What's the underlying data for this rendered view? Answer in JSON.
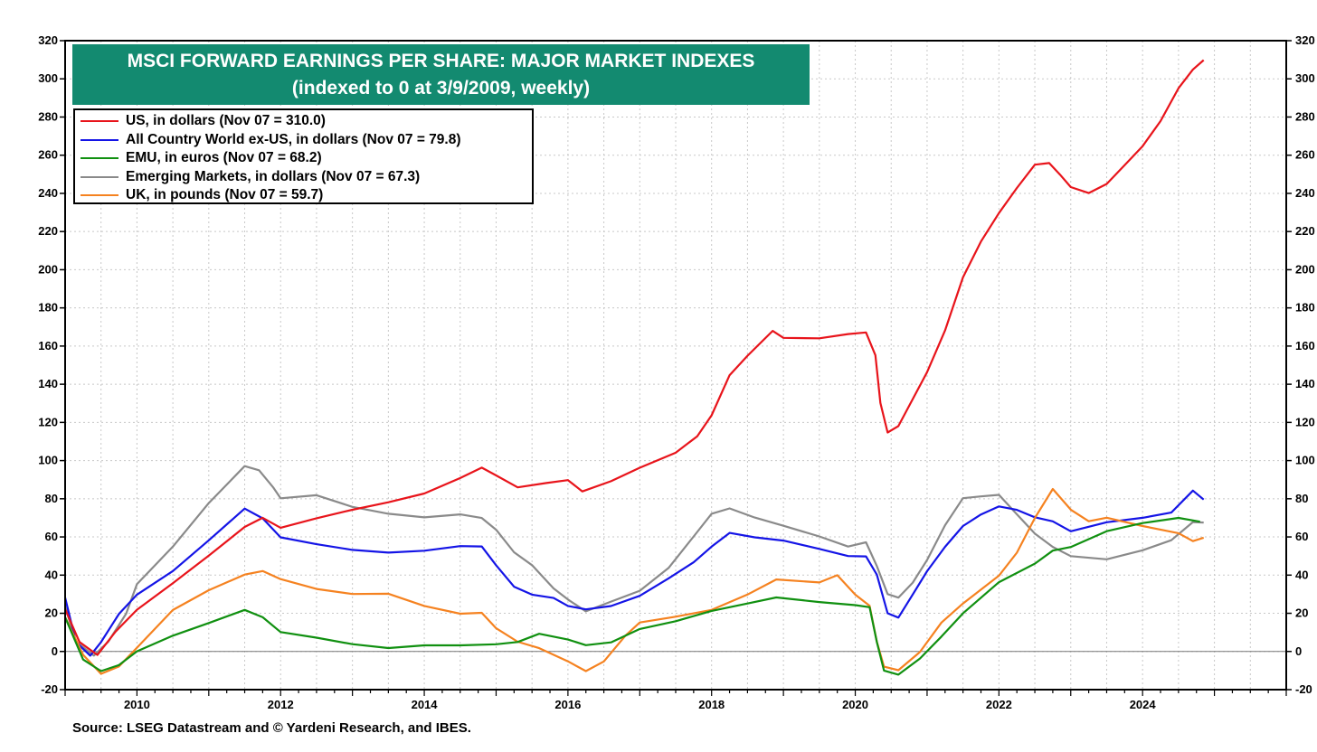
{
  "chart_data": {
    "type": "line",
    "title": "MSCI FORWARD EARNINGS PER SHARE: MAJOR MARKET INDEXES",
    "subtitle": "(indexed to 0 at 3/9/2009, weekly)",
    "source": "Source: LSEG Datastream and © Yardeni Research, and IBES.",
    "xlim": [
      2009.0,
      2026.0
    ],
    "ylim": [
      -20,
      320
    ],
    "x_ticks": [
      "2010",
      "2012",
      "2014",
      "2016",
      "2018",
      "2020",
      "2022",
      "2024"
    ],
    "y_ticks": [
      "-20",
      "0",
      "20",
      "40",
      "60",
      "80",
      "100",
      "120",
      "140",
      "160",
      "180",
      "200",
      "220",
      "240",
      "260",
      "280",
      "300",
      "320"
    ],
    "grid": true,
    "legend_position": "top-left",
    "series": [
      {
        "name": "US, in dollars (Nov 07 = 310.0)",
        "color": "#e8141b",
        "points": [
          [
            2009.0,
            22
          ],
          [
            2009.2,
            5
          ],
          [
            2009.45,
            -2
          ],
          [
            2009.7,
            10
          ],
          [
            2010.0,
            22
          ],
          [
            2010.5,
            36
          ],
          [
            2011.0,
            50
          ],
          [
            2011.5,
            65
          ],
          [
            2011.75,
            70
          ],
          [
            2012.0,
            65
          ],
          [
            2012.5,
            70
          ],
          [
            2013.0,
            74
          ],
          [
            2013.5,
            78
          ],
          [
            2014.0,
            83
          ],
          [
            2014.5,
            91
          ],
          [
            2014.8,
            96
          ],
          [
            2015.0,
            92
          ],
          [
            2015.3,
            86
          ],
          [
            2015.7,
            88
          ],
          [
            2016.0,
            90
          ],
          [
            2016.2,
            84
          ],
          [
            2016.6,
            89
          ],
          [
            2017.0,
            96
          ],
          [
            2017.5,
            104
          ],
          [
            2017.8,
            113
          ],
          [
            2018.0,
            124
          ],
          [
            2018.25,
            145
          ],
          [
            2018.5,
            155
          ],
          [
            2018.85,
            168
          ],
          [
            2019.0,
            164
          ],
          [
            2019.5,
            164
          ],
          [
            2019.9,
            166
          ],
          [
            2020.15,
            167
          ],
          [
            2020.28,
            155
          ],
          [
            2020.35,
            130
          ],
          [
            2020.45,
            115
          ],
          [
            2020.6,
            118
          ],
          [
            2020.8,
            132
          ],
          [
            2021.0,
            146
          ],
          [
            2021.25,
            168
          ],
          [
            2021.5,
            196
          ],
          [
            2021.75,
            215
          ],
          [
            2022.0,
            230
          ],
          [
            2022.25,
            243
          ],
          [
            2022.5,
            255
          ],
          [
            2022.7,
            256
          ],
          [
            2022.85,
            250
          ],
          [
            2023.0,
            243
          ],
          [
            2023.25,
            240
          ],
          [
            2023.5,
            245
          ],
          [
            2023.75,
            255
          ],
          [
            2024.0,
            265
          ],
          [
            2024.25,
            278
          ],
          [
            2024.5,
            295
          ],
          [
            2024.7,
            305
          ],
          [
            2024.85,
            310
          ]
        ]
      },
      {
        "name": "All Country World ex-US, in dollars (Nov 07 = 79.8)",
        "color": "#1414e6",
        "points": [
          [
            2009.0,
            28
          ],
          [
            2009.15,
            5
          ],
          [
            2009.35,
            -2
          ],
          [
            2009.5,
            5
          ],
          [
            2009.75,
            20
          ],
          [
            2010.0,
            30
          ],
          [
            2010.5,
            42
          ],
          [
            2011.0,
            58
          ],
          [
            2011.5,
            75
          ],
          [
            2011.75,
            70
          ],
          [
            2012.0,
            60
          ],
          [
            2012.5,
            56
          ],
          [
            2013.0,
            53
          ],
          [
            2013.5,
            52
          ],
          [
            2014.0,
            53
          ],
          [
            2014.5,
            55
          ],
          [
            2014.8,
            55
          ],
          [
            2015.0,
            45
          ],
          [
            2015.25,
            34
          ],
          [
            2015.5,
            30
          ],
          [
            2015.8,
            28
          ],
          [
            2016.0,
            24
          ],
          [
            2016.25,
            22
          ],
          [
            2016.6,
            24
          ],
          [
            2017.0,
            29
          ],
          [
            2017.4,
            38
          ],
          [
            2017.75,
            47
          ],
          [
            2018.0,
            55
          ],
          [
            2018.25,
            62
          ],
          [
            2018.6,
            60
          ],
          [
            2019.0,
            58
          ],
          [
            2019.5,
            54
          ],
          [
            2019.9,
            50
          ],
          [
            2020.15,
            50
          ],
          [
            2020.3,
            40
          ],
          [
            2020.45,
            20
          ],
          [
            2020.6,
            18
          ],
          [
            2020.8,
            30
          ],
          [
            2021.0,
            42
          ],
          [
            2021.25,
            55
          ],
          [
            2021.5,
            66
          ],
          [
            2021.75,
            72
          ],
          [
            2022.0,
            76
          ],
          [
            2022.25,
            74
          ],
          [
            2022.5,
            70
          ],
          [
            2022.75,
            68
          ],
          [
            2023.0,
            63
          ],
          [
            2023.5,
            68
          ],
          [
            2024.0,
            70
          ],
          [
            2024.4,
            73
          ],
          [
            2024.7,
            84
          ],
          [
            2024.85,
            79.8
          ]
        ]
      },
      {
        "name": "EMU, in euros (Nov 07 = 68.2)",
        "color": "#109010",
        "points": [
          [
            2009.0,
            18
          ],
          [
            2009.25,
            -4
          ],
          [
            2009.5,
            -10
          ],
          [
            2009.75,
            -7
          ],
          [
            2010.0,
            0
          ],
          [
            2010.5,
            8
          ],
          [
            2011.0,
            15
          ],
          [
            2011.5,
            22
          ],
          [
            2011.75,
            18
          ],
          [
            2012.0,
            10
          ],
          [
            2012.5,
            7
          ],
          [
            2013.0,
            4
          ],
          [
            2013.5,
            2
          ],
          [
            2014.0,
            3
          ],
          [
            2014.5,
            3
          ],
          [
            2015.0,
            4
          ],
          [
            2015.3,
            5
          ],
          [
            2015.6,
            9
          ],
          [
            2016.0,
            6
          ],
          [
            2016.25,
            3
          ],
          [
            2016.6,
            5
          ],
          [
            2017.0,
            12
          ],
          [
            2017.5,
            16
          ],
          [
            2018.0,
            21
          ],
          [
            2018.5,
            25
          ],
          [
            2018.9,
            28
          ],
          [
            2019.5,
            26
          ],
          [
            2020.0,
            24
          ],
          [
            2020.2,
            23
          ],
          [
            2020.3,
            5
          ],
          [
            2020.4,
            -10
          ],
          [
            2020.6,
            -12
          ],
          [
            2020.9,
            -4
          ],
          [
            2021.2,
            8
          ],
          [
            2021.5,
            20
          ],
          [
            2022.0,
            36
          ],
          [
            2022.5,
            46
          ],
          [
            2022.75,
            53
          ],
          [
            2023.0,
            55
          ],
          [
            2023.5,
            63
          ],
          [
            2024.0,
            67
          ],
          [
            2024.5,
            70
          ],
          [
            2024.8,
            68.2
          ]
        ]
      },
      {
        "name": "Emerging Markets, in dollars (Nov 07 = 67.3)",
        "color": "#8a8a8a",
        "points": [
          [
            2009.0,
            24
          ],
          [
            2009.15,
            5
          ],
          [
            2009.4,
            -2
          ],
          [
            2009.6,
            5
          ],
          [
            2009.85,
            20
          ],
          [
            2010.0,
            35
          ],
          [
            2010.5,
            55
          ],
          [
            2011.0,
            78
          ],
          [
            2011.5,
            97
          ],
          [
            2011.7,
            95
          ],
          [
            2011.9,
            86
          ],
          [
            2012.0,
            80
          ],
          [
            2012.5,
            82
          ],
          [
            2013.0,
            76
          ],
          [
            2013.5,
            72
          ],
          [
            2014.0,
            70
          ],
          [
            2014.5,
            72
          ],
          [
            2014.8,
            70
          ],
          [
            2015.0,
            64
          ],
          [
            2015.25,
            52
          ],
          [
            2015.5,
            45
          ],
          [
            2015.8,
            33
          ],
          [
            2016.0,
            27
          ],
          [
            2016.25,
            21
          ],
          [
            2016.6,
            26
          ],
          [
            2017.0,
            32
          ],
          [
            2017.4,
            44
          ],
          [
            2017.75,
            60
          ],
          [
            2018.0,
            72
          ],
          [
            2018.25,
            75
          ],
          [
            2018.6,
            70
          ],
          [
            2019.0,
            66
          ],
          [
            2019.5,
            60
          ],
          [
            2019.9,
            55
          ],
          [
            2020.15,
            57
          ],
          [
            2020.3,
            45
          ],
          [
            2020.45,
            30
          ],
          [
            2020.6,
            28
          ],
          [
            2020.8,
            36
          ],
          [
            2021.0,
            48
          ],
          [
            2021.25,
            66
          ],
          [
            2021.5,
            80
          ],
          [
            2021.75,
            81
          ],
          [
            2022.0,
            82
          ],
          [
            2022.25,
            72
          ],
          [
            2022.5,
            62
          ],
          [
            2022.75,
            55
          ],
          [
            2023.0,
            50
          ],
          [
            2023.5,
            48
          ],
          [
            2024.0,
            53
          ],
          [
            2024.4,
            58
          ],
          [
            2024.7,
            68
          ],
          [
            2024.85,
            67.3
          ]
        ]
      },
      {
        "name": "UK, in pounds (Nov 07 = 59.7)",
        "color": "#f58220",
        "points": [
          [
            2009.0,
            18
          ],
          [
            2009.25,
            -2
          ],
          [
            2009.5,
            -12
          ],
          [
            2009.75,
            -8
          ],
          [
            2010.0,
            2
          ],
          [
            2010.5,
            22
          ],
          [
            2011.0,
            32
          ],
          [
            2011.5,
            40
          ],
          [
            2011.75,
            42
          ],
          [
            2012.0,
            38
          ],
          [
            2012.5,
            33
          ],
          [
            2013.0,
            30
          ],
          [
            2013.5,
            30
          ],
          [
            2014.0,
            24
          ],
          [
            2014.5,
            20
          ],
          [
            2014.8,
            20
          ],
          [
            2015.0,
            12
          ],
          [
            2015.3,
            5
          ],
          [
            2015.6,
            2
          ],
          [
            2016.0,
            -5
          ],
          [
            2016.25,
            -10
          ],
          [
            2016.5,
            -5
          ],
          [
            2016.8,
            8
          ],
          [
            2017.0,
            15
          ],
          [
            2017.5,
            18
          ],
          [
            2018.0,
            22
          ],
          [
            2018.5,
            30
          ],
          [
            2018.9,
            38
          ],
          [
            2019.5,
            36
          ],
          [
            2019.75,
            40
          ],
          [
            2020.0,
            30
          ],
          [
            2020.2,
            24
          ],
          [
            2020.3,
            5
          ],
          [
            2020.4,
            -8
          ],
          [
            2020.6,
            -10
          ],
          [
            2020.9,
            0
          ],
          [
            2021.2,
            15
          ],
          [
            2021.5,
            25
          ],
          [
            2022.0,
            40
          ],
          [
            2022.25,
            52
          ],
          [
            2022.5,
            70
          ],
          [
            2022.75,
            85
          ],
          [
            2023.0,
            74
          ],
          [
            2023.25,
            68
          ],
          [
            2023.5,
            70
          ],
          [
            2024.0,
            66
          ],
          [
            2024.5,
            62
          ],
          [
            2024.7,
            58
          ],
          [
            2024.85,
            59.7
          ]
        ]
      }
    ]
  }
}
